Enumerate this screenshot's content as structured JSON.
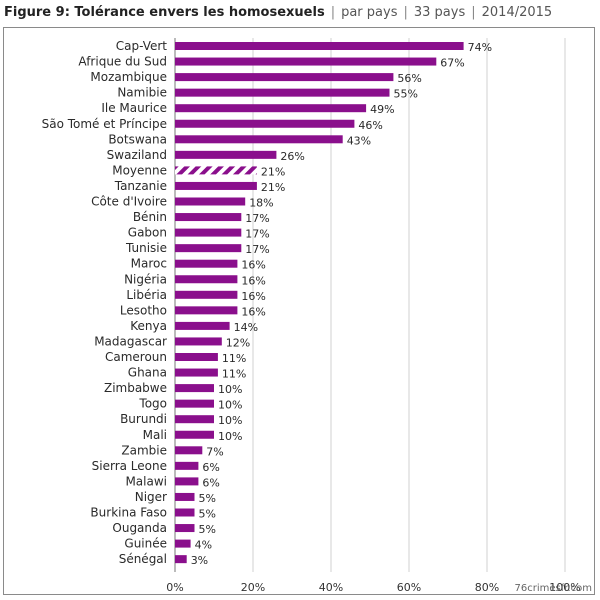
{
  "header": {
    "figure": "Figure 9: Tolérance envers les homosexuels",
    "meta": [
      "par pays",
      "33 pays",
      "2014/2015"
    ]
  },
  "watermark": "76crimesfr.com",
  "chart_data": {
    "type": "bar",
    "orientation": "horizontal",
    "title": "Figure 9: Tolérance envers les homosexuels",
    "xlim": [
      0,
      100
    ],
    "x_ticks": [
      0,
      20,
      40,
      60,
      80,
      100
    ],
    "x_tick_labels": [
      "0%",
      "20%",
      "40%",
      "60%",
      "80%",
      "100%"
    ],
    "grid": "vertical",
    "bar_color": "#8a0f8c",
    "categories": [
      "Cap-Vert",
      "Afrique du Sud",
      "Mozambique",
      "Namibie",
      "Ile Maurice",
      "São Tomé et Príncipe",
      "Botswana",
      "Swaziland",
      "Moyenne",
      "Tanzanie",
      "Côte d'Ivoire",
      "Bénin",
      "Gabon",
      "Tunisie",
      "Maroc",
      "Nigéria",
      "Libéria",
      "Lesotho",
      "Kenya",
      "Madagascar",
      "Cameroun",
      "Ghana",
      "Zimbabwe",
      "Togo",
      "Burundi",
      "Mali",
      "Zambie",
      "Sierra Leone",
      "Malawi",
      "Niger",
      "Burkina Faso",
      "Ouganda",
      "Guinée",
      "Sénégal"
    ],
    "values": [
      74,
      67,
      56,
      55,
      49,
      46,
      43,
      26,
      21,
      21,
      18,
      17,
      17,
      17,
      16,
      16,
      16,
      16,
      14,
      12,
      11,
      11,
      10,
      10,
      10,
      10,
      7,
      6,
      6,
      5,
      5,
      5,
      4,
      3
    ],
    "value_labels": [
      "74%",
      "67%",
      "56%",
      "55%",
      "49%",
      "46%",
      "43%",
      "26%",
      "21%",
      "21%",
      "18%",
      "17%",
      "17%",
      "17%",
      "16%",
      "16%",
      "16%",
      "16%",
      "14%",
      "12%",
      "11%",
      "11%",
      "10%",
      "10%",
      "10%",
      "10%",
      "7%",
      "6%",
      "6%",
      "5%",
      "5%",
      "5%",
      "4%",
      "3%"
    ],
    "highlight": {
      "category": "Moyenne",
      "style": "hatched"
    }
  }
}
